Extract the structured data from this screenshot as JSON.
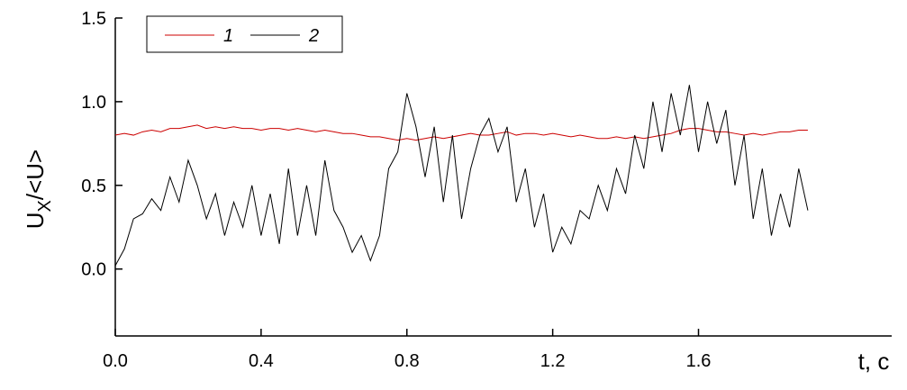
{
  "chart_data": {
    "type": "line",
    "x_label": "t, c",
    "y_label": {
      "main": "U",
      "sub": "X",
      "rest": "/<U>"
    },
    "x": [
      0,
      0.025,
      0.05,
      0.075,
      0.1,
      0.125,
      0.15,
      0.175,
      0.2,
      0.225,
      0.25,
      0.275,
      0.3,
      0.325,
      0.35,
      0.375,
      0.4,
      0.425,
      0.45,
      0.475,
      0.5,
      0.525,
      0.55,
      0.575,
      0.6,
      0.625,
      0.65,
      0.675,
      0.7,
      0.725,
      0.75,
      0.775,
      0.8,
      0.825,
      0.85,
      0.875,
      0.9,
      0.925,
      0.95,
      0.975,
      1.0,
      1.025,
      1.05,
      1.075,
      1.1,
      1.125,
      1.15,
      1.175,
      1.2,
      1.225,
      1.25,
      1.275,
      1.3,
      1.325,
      1.35,
      1.375,
      1.4,
      1.425,
      1.45,
      1.475,
      1.5,
      1.525,
      1.55,
      1.575,
      1.6,
      1.625,
      1.65,
      1.675,
      1.7,
      1.725,
      1.75,
      1.775,
      1.8,
      1.825,
      1.85,
      1.875,
      1.9
    ],
    "series": [
      {
        "name": "1",
        "color": "#cc0000",
        "values": [
          0.8,
          0.81,
          0.8,
          0.82,
          0.83,
          0.82,
          0.84,
          0.84,
          0.85,
          0.86,
          0.84,
          0.85,
          0.84,
          0.85,
          0.84,
          0.84,
          0.83,
          0.84,
          0.84,
          0.83,
          0.84,
          0.83,
          0.82,
          0.83,
          0.82,
          0.81,
          0.81,
          0.8,
          0.79,
          0.79,
          0.78,
          0.77,
          0.78,
          0.77,
          0.78,
          0.79,
          0.78,
          0.79,
          0.8,
          0.81,
          0.8,
          0.8,
          0.81,
          0.82,
          0.8,
          0.81,
          0.81,
          0.8,
          0.81,
          0.8,
          0.79,
          0.8,
          0.79,
          0.78,
          0.78,
          0.79,
          0.78,
          0.79,
          0.78,
          0.79,
          0.8,
          0.81,
          0.83,
          0.84,
          0.84,
          0.83,
          0.82,
          0.82,
          0.81,
          0.8,
          0.81,
          0.8,
          0.81,
          0.82,
          0.82,
          0.83,
          0.83
        ]
      },
      {
        "name": "2",
        "color": "#000000",
        "values": [
          0.02,
          0.12,
          0.3,
          0.33,
          0.42,
          0.35,
          0.55,
          0.4,
          0.65,
          0.5,
          0.3,
          0.45,
          0.2,
          0.4,
          0.25,
          0.5,
          0.2,
          0.45,
          0.15,
          0.6,
          0.2,
          0.5,
          0.2,
          0.65,
          0.35,
          0.25,
          0.1,
          0.2,
          0.05,
          0.2,
          0.6,
          0.7,
          1.05,
          0.85,
          0.55,
          0.85,
          0.4,
          0.8,
          0.3,
          0.6,
          0.8,
          0.9,
          0.7,
          0.85,
          0.4,
          0.6,
          0.25,
          0.45,
          0.1,
          0.25,
          0.15,
          0.35,
          0.3,
          0.5,
          0.35,
          0.6,
          0.45,
          0.8,
          0.6,
          1.0,
          0.7,
          1.05,
          0.8,
          1.1,
          0.7,
          1.0,
          0.75,
          0.95,
          0.5,
          0.8,
          0.3,
          0.6,
          0.2,
          0.45,
          0.25,
          0.6,
          0.35
        ]
      }
    ],
    "xlim": [
      0,
      2.13
    ],
    "ylim": [
      -0.4,
      1.5
    ],
    "xticks": [
      {
        "value": 0,
        "label": "0.0"
      },
      0.4,
      0.8,
      1.2,
      1.6
    ],
    "yticks": [
      {
        "value": 0,
        "label": "0.0"
      },
      0.5,
      {
        "value": 1,
        "label": "1.0"
      },
      1.5
    ],
    "legend": "upper left"
  }
}
